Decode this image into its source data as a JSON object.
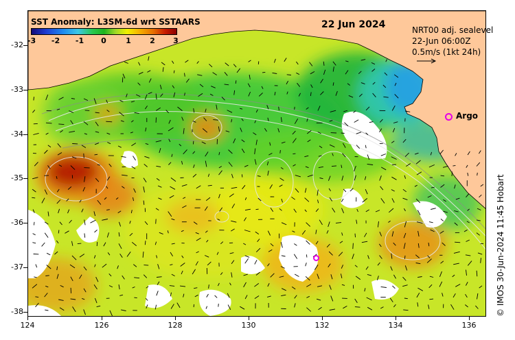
{
  "legend": {
    "title": "SST Anomaly: L3SM-6d wrt SSTAARS",
    "ticks": [
      "-3",
      "-2",
      "-1",
      "0",
      "1",
      "2",
      "3"
    ]
  },
  "map": {
    "date": "22 Jun 2024",
    "y_ticks": [
      "-32",
      "-33",
      "-34",
      "-35",
      "-36",
      "-37",
      "-38"
    ],
    "x_ticks": [
      "124",
      "126",
      "128",
      "130",
      "132",
      "134",
      "136"
    ],
    "lat_range": [
      -38.1,
      -31.3
    ],
    "lon_range": [
      124,
      136.5
    ]
  },
  "info": {
    "line1": "NRT00 adj. sealevel",
    "line2": "22-Jun 06:00Z",
    "line3": "0.5m/s (1kt 24h)"
  },
  "argo": {
    "label": "Argo"
  },
  "credit": "© IMOS 30-Jun-2024 11:45 Hobart",
  "colors": {
    "land": "#fec89a",
    "marker": "#e600e6"
  }
}
